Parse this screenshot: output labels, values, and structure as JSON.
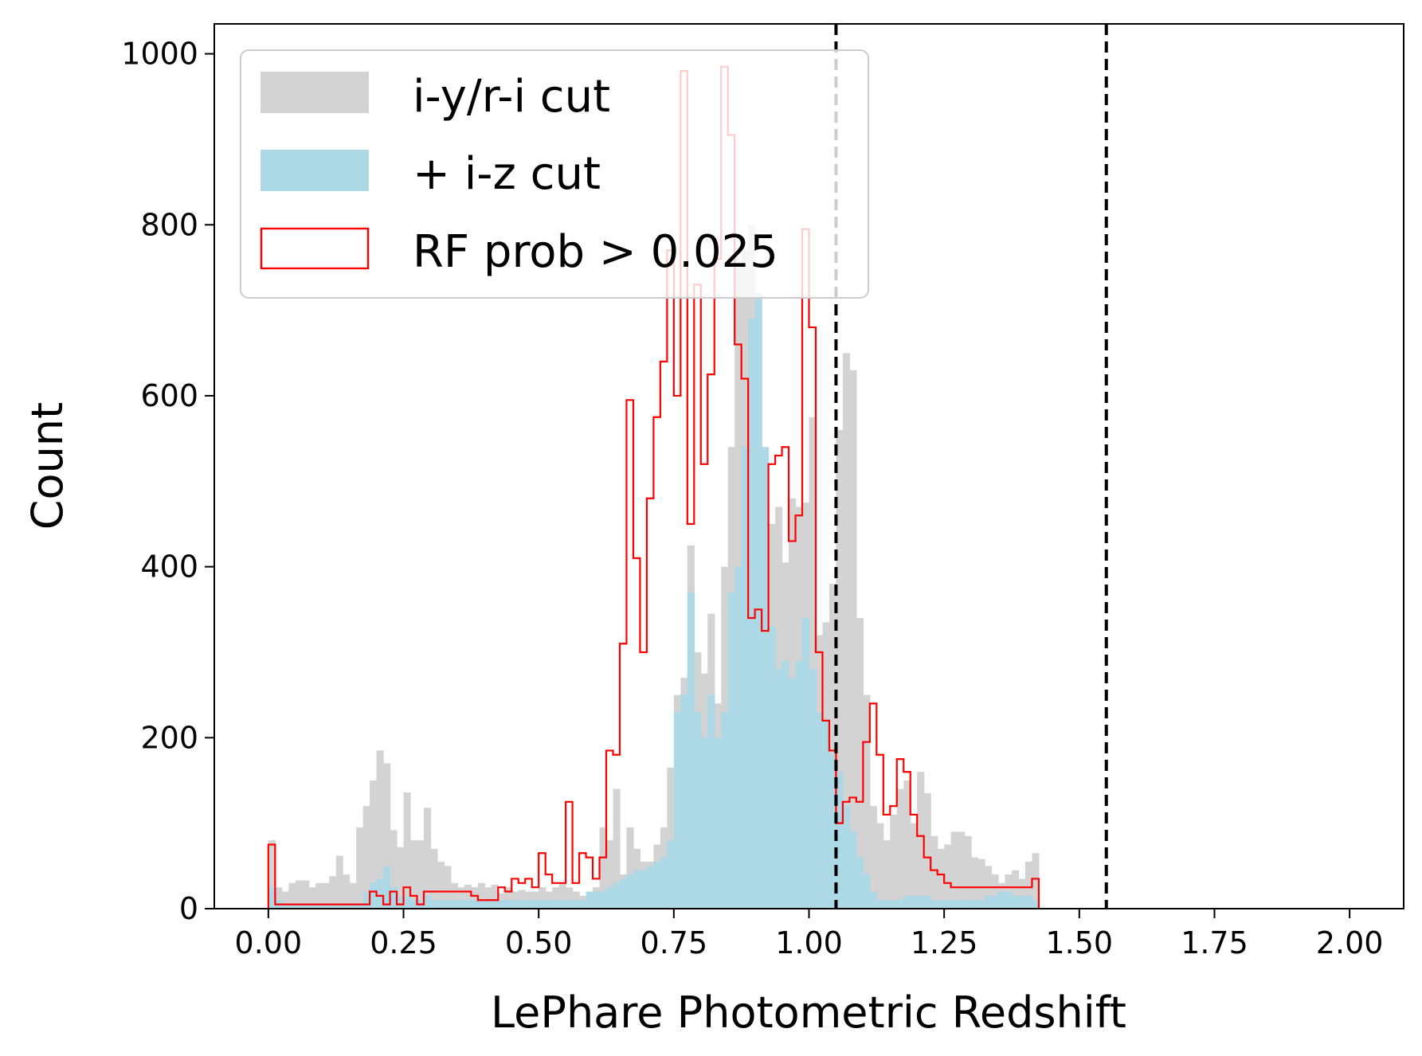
{
  "chart_data": {
    "type": "bar",
    "xlabel": "LePhare Photometric Redshift",
    "ylabel": "Count",
    "xlim": [
      -0.1,
      2.1
    ],
    "ylim": [
      0,
      1035
    ],
    "xticks": [
      "0.00",
      "0.25",
      "0.50",
      "0.75",
      "1.00",
      "1.25",
      "1.50",
      "1.75",
      "2.00"
    ],
    "yticks": [
      "0",
      "200",
      "400",
      "600",
      "800",
      "1000"
    ],
    "bin_width": 0.0125,
    "x_start": 0.0,
    "grid": false,
    "legend_position": "upper-left",
    "vlines": [
      1.05,
      1.55
    ],
    "series": [
      {
        "name": "i-y/r-i cut",
        "style": "filled",
        "color": "#d3d3d3",
        "values": [
          80,
          25,
          20,
          30,
          33,
          33,
          25,
          30,
          30,
          38,
          62,
          40,
          30,
          95,
          120,
          150,
          185,
          170,
          92,
          72,
          136,
          80,
          80,
          118,
          70,
          55,
          50,
          30,
          25,
          28,
          25,
          30,
          25,
          28,
          18,
          25,
          20,
          22,
          20,
          20,
          25,
          20,
          25,
          30,
          25,
          20,
          15,
          18,
          25,
          95,
          80,
          140,
          40,
          95,
          70,
          55,
          55,
          75,
          95,
          165,
          250,
          270,
          425,
          300,
          275,
          345,
          240,
          400,
          540,
          750,
          770,
          800,
          400,
          415,
          450,
          470,
          405,
          480,
          470,
          475,
          575,
          320,
          335,
          380,
          560,
          650,
          630,
          340,
          250,
          120,
          100,
          80,
          110,
          140,
          150,
          100,
          160,
          135,
          85,
          70,
          75,
          90,
          90,
          85,
          60,
          58,
          50,
          40,
          30,
          40,
          45,
          35,
          55,
          65
        ]
      },
      {
        "name": "+ i-z cut",
        "style": "filled",
        "color": "#add8e6",
        "values": [
          25,
          10,
          5,
          5,
          5,
          5,
          5,
          5,
          5,
          5,
          5,
          5,
          5,
          5,
          20,
          30,
          35,
          50,
          25,
          15,
          15,
          10,
          10,
          15,
          10,
          10,
          10,
          10,
          10,
          10,
          10,
          10,
          10,
          10,
          10,
          10,
          10,
          10,
          10,
          10,
          10,
          10,
          10,
          10,
          10,
          10,
          10,
          20,
          20,
          20,
          25,
          30,
          35,
          40,
          45,
          45,
          50,
          55,
          60,
          80,
          230,
          250,
          370,
          230,
          200,
          250,
          200,
          230,
          370,
          400,
          540,
          690,
          720,
          540,
          330,
          280,
          290,
          270,
          290,
          340,
          280,
          230,
          220,
          180,
          160,
          120,
          90,
          60,
          40,
          20,
          10,
          10,
          10,
          10,
          15,
          15,
          15,
          15,
          10,
          10,
          10,
          10,
          10,
          10,
          10,
          10,
          15,
          15,
          20,
          20,
          15,
          15,
          15,
          10
        ]
      },
      {
        "name": "RF prob > 0.025",
        "style": "step",
        "color": "#ff0000",
        "values": [
          75,
          5,
          5,
          5,
          5,
          5,
          5,
          5,
          5,
          5,
          5,
          5,
          5,
          5,
          5,
          20,
          15,
          5,
          20,
          5,
          25,
          15,
          5,
          20,
          20,
          20,
          20,
          20,
          20,
          20,
          15,
          10,
          10,
          10,
          25,
          20,
          35,
          30,
          35,
          25,
          65,
          40,
          30,
          30,
          125,
          30,
          65,
          60,
          35,
          60,
          185,
          180,
          310,
          595,
          410,
          300,
          480,
          575,
          640,
          770,
          600,
          980,
          450,
          730,
          520,
          625,
          760,
          985,
          905,
          660,
          620,
          340,
          350,
          325,
          520,
          530,
          540,
          430,
          460,
          795,
          680,
          300,
          220,
          185,
          100,
          125,
          130,
          125,
          195,
          240,
          180,
          110,
          120,
          175,
          160,
          110,
          85,
          60,
          45,
          40,
          30,
          25,
          25,
          25,
          25,
          25,
          25,
          25,
          25,
          25,
          25,
          25,
          25,
          35
        ]
      }
    ]
  }
}
